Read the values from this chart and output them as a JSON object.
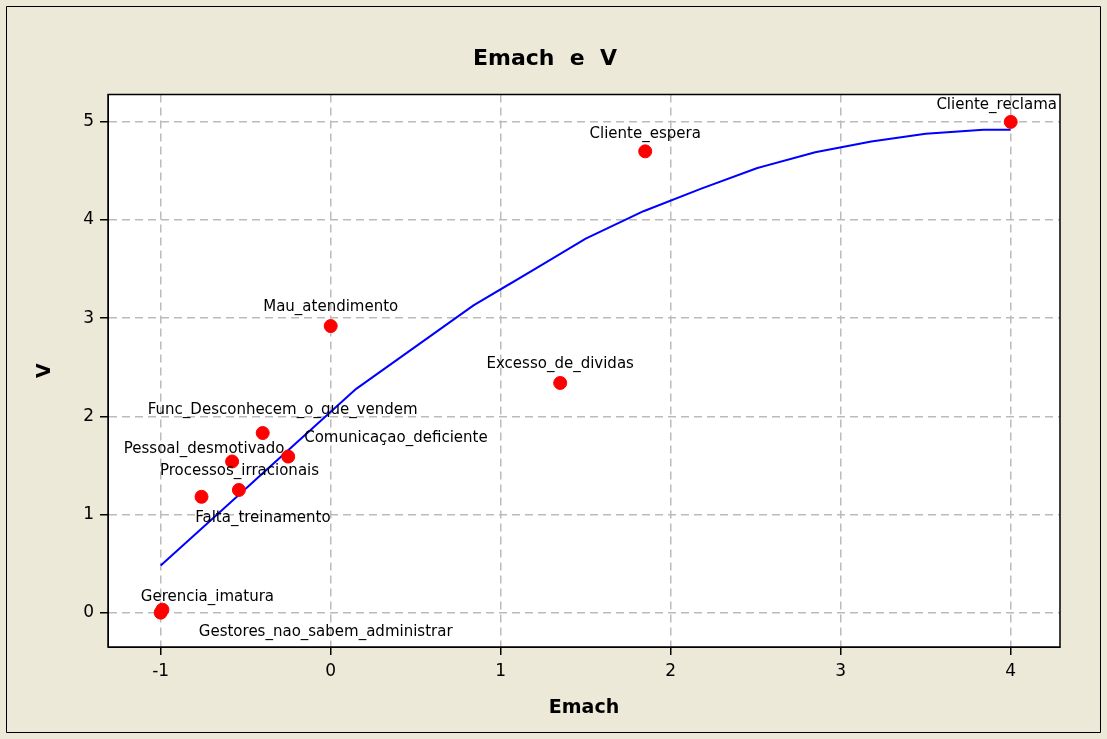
{
  "chart_data": {
    "type": "scatter",
    "title": "Emach  e  V",
    "xlabel": "Emach",
    "ylabel": "V",
    "xlim": [
      -1.31,
      4.29
    ],
    "ylim": [
      -0.35,
      5.28
    ],
    "xticks": [
      -1,
      0,
      1,
      2,
      3,
      4
    ],
    "yticks": [
      0,
      1,
      2,
      3,
      4,
      5
    ],
    "grid": true,
    "legend": false,
    "marker": "circle",
    "series": [
      {
        "color": "#ff0000",
        "x": [
          4,
          1.85,
          0,
          1.35,
          -0.4,
          -0.25,
          -0.58,
          -0.76,
          -0.54,
          -0.99,
          -1
        ],
        "values": [
          5,
          4.7,
          2.92,
          2.34,
          1.83,
          1.59,
          1.54,
          1.18,
          1.25,
          0.03,
          0
        ]
      },
      {
        "type": "line",
        "color": "#0000ff",
        "marker": "none",
        "line_style": "solid",
        "x": [
          -1,
          0.15,
          0.84,
          1.21,
          1.5,
          1.84,
          2.18,
          2.51,
          2.85,
          3.18,
          3.5,
          3.84,
          4
        ],
        "values": [
          0.48,
          2.28,
          3.13,
          3.51,
          3.81,
          4.09,
          4.32,
          4.53,
          4.69,
          4.8,
          4.88,
          4.92,
          4.92
        ]
      }
    ],
    "annotations": [
      {
        "text": "Cliente_reclama",
        "x": 4,
        "y": 5
      },
      {
        "text": "Cliente_espera",
        "x": 1.85,
        "y": 4.7
      },
      {
        "text": "Mau_atendimento",
        "x": 0,
        "y": 2.92
      },
      {
        "text": "Excesso_de_dividas",
        "x": 1.35,
        "y": 2.34
      },
      {
        "text": "Func_Desconhecem_o_que_vendem",
        "x": -0.4,
        "y": 1.83
      },
      {
        "text": "Comunicaçao_deficiente",
        "x": -0.25,
        "y": 1.59
      },
      {
        "text": "Pessoal_desmotivado",
        "x": -0.58,
        "y": 1.54
      },
      {
        "text": "Processos_irracionais",
        "x": -0.76,
        "y": 1.18
      },
      {
        "text": "Falta_treinamento",
        "x": -0.54,
        "y": 1.25
      },
      {
        "text": "Gerencia_imatura",
        "x": -0.99,
        "y": 0.03
      },
      {
        "text": "Gestores_nao_sabem_administrar",
        "x": -1,
        "y": 0
      }
    ]
  }
}
